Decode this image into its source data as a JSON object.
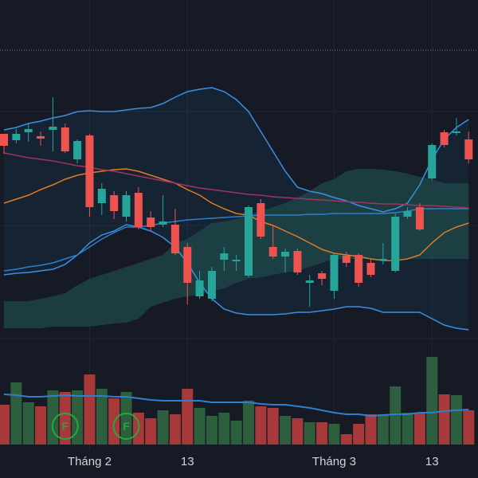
{
  "chart_data": {
    "type": "candlestick",
    "categories": [
      null,
      null,
      null,
      null,
      null,
      null,
      null,
      "Tháng 2",
      null,
      null,
      null,
      null,
      null,
      null,
      null,
      "13",
      null,
      null,
      null,
      null,
      null,
      null,
      null,
      null,
      null,
      null,
      null,
      "Tháng 3",
      null,
      null,
      null,
      null,
      null,
      null,
      null,
      "13",
      null,
      null,
      null
    ],
    "open": [
      432,
      424,
      434,
      429,
      437,
      440,
      400,
      430,
      345,
      355,
      328,
      358,
      327,
      318,
      318,
      290,
      228,
      225,
      274,
      272,
      254,
      345,
      290,
      278,
      285,
      245,
      257,
      235,
      279,
      280,
      270,
      273,
      260,
      328,
      340,
      376,
      434,
      433,
      425
    ],
    "high": [
      432,
      438,
      445,
      435,
      478,
      445,
      425,
      432,
      370,
      360,
      360,
      365,
      335,
      355,
      338,
      295,
      260,
      265,
      290,
      280,
      342,
      350,
      318,
      288,
      288,
      255,
      260,
      282,
      284,
      282,
      275,
      295,
      332,
      340,
      345,
      420,
      437,
      452,
      435
    ],
    "low": [
      407,
      420,
      422,
      417,
      410,
      408,
      395,
      328,
      330,
      325,
      322,
      312,
      310,
      315,
      280,
      218,
      225,
      222,
      260,
      260,
      252,
      300,
      275,
      258,
      255,
      215,
      242,
      225,
      265,
      240,
      252,
      268,
      258,
      325,
      310,
      374,
      415,
      430,
      395
    ],
    "close": [
      417,
      432,
      438,
      426,
      441,
      410,
      423,
      340,
      363,
      335,
      355,
      315,
      315,
      322,
      282,
      245,
      248,
      260,
      282,
      274,
      340,
      303,
      278,
      284,
      258,
      248,
      250,
      280,
      270,
      245,
      255,
      275,
      328,
      335,
      312,
      418,
      418,
      435,
      400
    ],
    "ylim": [
      0,
      600
    ],
    "up_color": "#26a69a",
    "down_color": "#ef5350",
    "volume": [
      50,
      78,
      53,
      48,
      68,
      66,
      68,
      88,
      70,
      58,
      66,
      40,
      33,
      43,
      38,
      70,
      46,
      36,
      40,
      30,
      55,
      48,
      46,
      36,
      33,
      28,
      28,
      26,
      13,
      26,
      38,
      38,
      73,
      40,
      40,
      110,
      63,
      62,
      43
    ],
    "volume_ylim": [
      0,
      120
    ],
    "volume_up_color": "#2d5e3e",
    "volume_down_color": "#a8393b",
    "lines": [
      {
        "color": "#3b8fe0",
        "values": [
          437,
          440,
          445,
          448,
          452,
          455,
          460,
          461,
          460,
          460,
          462,
          464,
          465,
          470,
          478,
          485,
          488,
          490,
          485,
          475,
          460,
          435,
          410,
          385,
          365,
          360,
          357,
          352,
          348,
          342,
          338,
          334,
          338,
          345,
          368,
          400,
          425,
          440,
          450
        ]
      },
      {
        "color": "#3b8fe0",
        "values": [
          255,
          257,
          258,
          260,
          262,
          268,
          280,
          295,
          305,
          310,
          318,
          315,
          310,
          302,
          290,
          270,
          245,
          225,
          212,
          207,
          205,
          205,
          205,
          206,
          208,
          208,
          210,
          212,
          215,
          215,
          213,
          208,
          208,
          208,
          208,
          200,
          192,
          188,
          186
        ]
      },
      {
        "color": "#2f7fd0",
        "values": [
          260,
          262,
          265,
          267,
          270,
          275,
          280,
          290,
          300,
          308,
          315,
          315,
          317,
          320,
          322,
          324,
          325,
          326,
          327,
          328,
          329,
          330,
          330,
          330,
          330,
          331,
          331,
          332,
          332,
          332,
          332,
          332,
          333,
          335,
          338,
          338,
          338,
          338,
          338
        ]
      },
      {
        "color": "#e07b24",
        "values": [
          345,
          350,
          355,
          362,
          368,
          375,
          380,
          383,
          385,
          387,
          388,
          385,
          380,
          375,
          370,
          362,
          355,
          345,
          338,
          332,
          330,
          322,
          317,
          310,
          303,
          295,
          287,
          282,
          280,
          278,
          275,
          273,
          273,
          275,
          280,
          295,
          308,
          315,
          320
        ]
      },
      {
        "color": "#a3325f",
        "values": [
          408,
          405,
          402,
          400,
          398,
          395,
          392,
          390,
          387,
          385,
          382,
          379,
          376,
          373,
          370,
          367,
          364,
          362,
          360,
          358,
          356,
          355,
          353,
          352,
          351,
          350,
          349,
          348,
          347,
          346,
          345,
          344,
          344,
          343,
          342,
          342,
          341,
          340,
          339
        ]
      }
    ],
    "cloud_upper": [
      222,
      222,
      222,
      225,
      228,
      232,
      242,
      250,
      255,
      260,
      265,
      270,
      275,
      280,
      295,
      300,
      310,
      320,
      322,
      325,
      330,
      335,
      340,
      345,
      352,
      360,
      370,
      375,
      385,
      388,
      388,
      387,
      385,
      382,
      378,
      375,
      370,
      370,
      370
    ],
    "cloud_lower": [
      188,
      188,
      188,
      188,
      190,
      190,
      190,
      190,
      192,
      194,
      195,
      200,
      215,
      220,
      225,
      228,
      230,
      235,
      238,
      245,
      250,
      252,
      255,
      258,
      260,
      265,
      270,
      275,
      275,
      275,
      275,
      275,
      275,
      275,
      275,
      275,
      275,
      275,
      275
    ],
    "cloud_color": "#1e4a4a",
    "volume_ma": [
      63,
      62,
      60,
      60,
      61,
      62,
      61,
      61,
      61,
      60,
      60,
      58,
      56,
      55,
      55,
      55,
      55,
      53,
      53,
      53,
      53,
      51,
      50,
      50,
      48,
      46,
      43,
      40,
      38,
      38,
      36,
      37,
      38,
      38,
      40,
      40,
      42,
      43,
      44
    ],
    "volume_ma_color": "#2f7fd0",
    "annotations": [
      {
        "category_index": 5,
        "text": "F"
      },
      {
        "category_index": 10,
        "text": "F"
      }
    ]
  }
}
